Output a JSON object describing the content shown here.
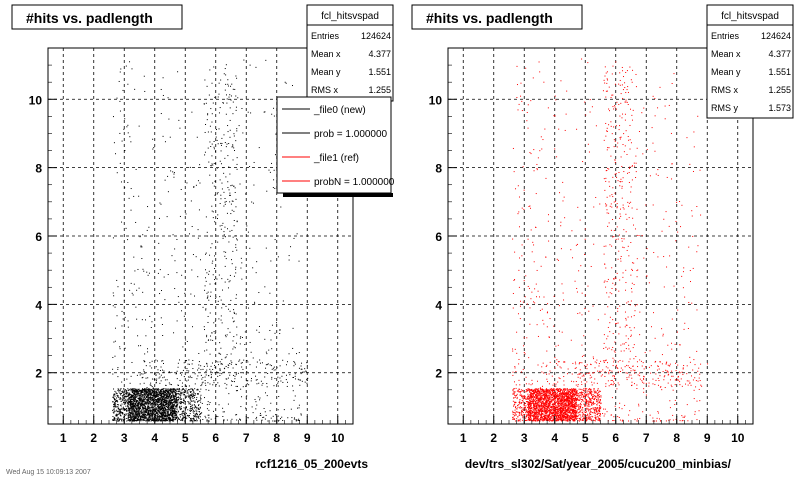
{
  "chart_data": [
    {
      "type": "scatter",
      "title": "#hits vs. padlength",
      "xlabel": "rcf1216_05_200evts",
      "ylabel": "",
      "xlim": [
        0.5,
        10.5
      ],
      "ylim": [
        0.5,
        11.5
      ],
      "x_ticks": [
        "1",
        "2",
        "3",
        "4",
        "5",
        "6",
        "7",
        "8",
        "9",
        "10"
      ],
      "y_ticks": [
        "2",
        "4",
        "6",
        "8",
        "10"
      ],
      "grid": true,
      "marker_color": "#000000",
      "stats": {
        "name": "fcl_hitsvspad",
        "rows": [
          {
            "label": "Entries",
            "value": "124624"
          },
          {
            "label": "Mean x",
            "value": "4.377"
          },
          {
            "label": "Mean y",
            "value": "1.551"
          },
          {
            "label": "RMS x",
            "value": "1.255"
          }
        ]
      },
      "legend": {
        "placement": "top-right",
        "entries": [
          {
            "label": "_file0 (new)",
            "color": "#000000"
          },
          {
            "label": "prob = 1.000000",
            "color": "#000000"
          },
          {
            "label": "_file1 (ref)",
            "color": "#ff0000"
          },
          {
            "label": "probN = 1.000000",
            "color": "#ff0000"
          }
        ]
      },
      "footer": "Wed Aug 15 10:09:13 2007"
    },
    {
      "type": "scatter",
      "title": "#hits vs. padlength",
      "xlabel": "dev/trs_sl302/Sat/year_2005/cucu200_minbias/",
      "ylabel": "",
      "xlim": [
        0.5,
        10.5
      ],
      "ylim": [
        0.5,
        11.5
      ],
      "x_ticks": [
        "1",
        "2",
        "3",
        "4",
        "5",
        "6",
        "7",
        "8",
        "9",
        "10"
      ],
      "y_ticks": [
        "2",
        "4",
        "6",
        "8",
        "10"
      ],
      "grid": true,
      "marker_color": "#ff0000",
      "stats": {
        "name": "fcl_hitsvspad",
        "rows": [
          {
            "label": "Entries",
            "value": "124624"
          },
          {
            "label": "Mean x",
            "value": "4.377"
          },
          {
            "label": "Mean y",
            "value": "1.551"
          },
          {
            "label": "RMS x",
            "value": "1.255"
          },
          {
            "label": "RMS y",
            "value": "1.573"
          }
        ]
      }
    }
  ]
}
